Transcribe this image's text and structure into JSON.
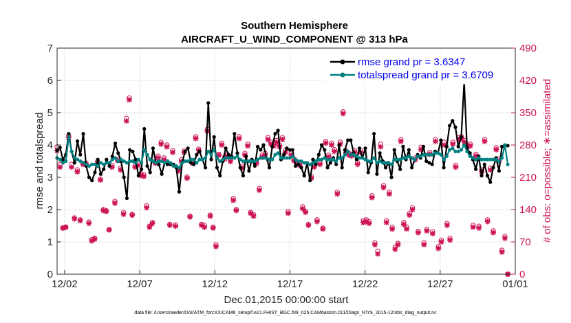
{
  "chart_data": {
    "type": "line",
    "title": "Southern Hemisphere",
    "subtitle": "AIRCRAFT_U_WIND_COMPONENT @ 313 hPa",
    "xlabel": "Dec.01,2015 00:00:00 start",
    "ylabel": "rmse and totalspread",
    "ylabel_right": "# of obs: o=possible; ∗=assimilated",
    "xlim": [
      0.5,
      31.0
    ],
    "ylim": [
      0,
      7
    ],
    "ylim_right": [
      0,
      490
    ],
    "x_ticks": [
      1,
      6,
      11,
      16,
      21,
      26,
      31
    ],
    "x_tick_labels": [
      "12/02",
      "12/07",
      "12/12",
      "12/17",
      "12/22",
      "12/27",
      "01/01"
    ],
    "y_ticks": [
      0,
      1,
      2,
      3,
      4,
      5,
      6,
      7
    ],
    "y_tick_labels": [
      "0",
      "1",
      "2",
      "3",
      "4",
      "5",
      "6",
      "7"
    ],
    "y_ticks_right": [
      0,
      70,
      140,
      210,
      280,
      350,
      420,
      490
    ],
    "y_tick_labels_right": [
      "0",
      "70",
      "140",
      "210",
      "280",
      "350",
      "420",
      "490"
    ],
    "footnote": "data file: /Users/raeder/DAI/ATM_forcXX/CAM6_setup/f.e21.FHIST_BGC.f09_025.CAM6assim.011/Diags_NTrS_2015-12/obs_diag_output.nc",
    "series": [
      {
        "name": "rmse grand pr = 3.6347",
        "color": "#000000",
        "values": [
          3.83,
          3.92,
          3.55,
          3.7,
          4.35,
          3.8,
          3.45,
          4.12,
          3.7,
          4.35,
          3.35,
          3.0,
          2.9,
          3.15,
          3.55,
          3.1,
          3.25,
          3.55,
          3.35,
          3.65,
          4.05,
          3.75,
          3.5,
          3.0,
          2.35,
          3.85,
          3.8,
          3.55,
          3.05,
          3.25,
          4.5,
          3.35,
          3.15,
          3.9,
          3.45,
          3.4,
          3.1,
          3.45,
          3.4,
          3.4,
          3.4,
          3.3,
          2.55,
          3.45,
          3.8,
          3.9,
          3.45,
          3.4,
          3.7,
          3.8,
          3.55,
          3.3,
          5.3,
          3.55,
          4.25,
          3.3,
          3.05,
          3.5,
          3.9,
          3.7,
          3.65,
          4.35,
          3.75,
          3.3,
          3.05,
          3.65,
          3.2,
          3.55,
          3.35,
          3.95,
          3.85,
          4.0,
          3.6,
          3.3,
          3.95,
          4.35,
          4.45,
          3.55,
          3.7,
          3.9,
          3.85,
          3.85,
          3.35,
          3.4,
          3.3,
          3.05,
          3.45,
          2.9,
          3.55,
          3.4,
          3.7,
          4.0,
          3.85,
          3.3,
          3.45,
          3.6,
          3.4,
          4.0,
          3.3,
          3.85,
          4.15,
          4.15,
          3.75,
          3.55,
          3.9,
          3.6,
          3.9,
          3.15,
          3.45,
          4.35,
          3.1,
          3.75,
          3.5,
          3.3,
          3.45,
          3.0,
          3.85,
          3.5,
          3.25,
          3.95,
          3.55,
          3.85,
          3.3,
          3.55,
          3.7,
          3.6,
          3.95,
          3.5,
          3.45,
          3.4,
          3.8,
          3.75,
          4.15,
          3.3,
          3.95,
          4.6,
          4.75,
          4.55,
          3.95,
          4.25,
          5.95,
          3.9,
          3.75,
          3.55,
          3.25,
          3.65,
          3.05,
          3.4,
          3.05,
          2.85,
          3.3,
          3.6,
          3.2,
          3.95,
          4.0,
          3.98
        ],
        "marker": "circle"
      },
      {
        "name": "totalspread grand pr = 3.6709",
        "color": "#008080",
        "values": [
          3.6,
          3.55,
          3.45,
          3.5,
          4.25,
          3.8,
          3.6,
          3.55,
          3.5,
          3.45,
          3.4,
          3.35,
          3.4,
          3.4,
          3.35,
          3.45,
          3.4,
          3.45,
          3.45,
          3.55,
          3.6,
          3.5,
          3.55,
          3.5,
          3.45,
          3.5,
          3.5,
          3.45,
          3.55,
          3.45,
          3.85,
          3.7,
          3.55,
          3.5,
          3.45,
          3.5,
          3.5,
          3.45,
          3.5,
          3.45,
          3.35,
          3.35,
          3.3,
          3.45,
          3.5,
          3.5,
          3.55,
          3.55,
          3.45,
          3.55,
          3.55,
          3.6,
          3.8,
          3.7,
          3.85,
          3.6,
          3.5,
          3.55,
          3.6,
          3.6,
          3.6,
          3.6,
          3.65,
          3.55,
          3.5,
          3.5,
          3.5,
          3.5,
          3.5,
          3.55,
          3.6,
          3.6,
          3.6,
          3.55,
          3.55,
          3.7,
          3.75,
          3.6,
          3.6,
          3.6,
          3.6,
          3.65,
          3.55,
          3.5,
          3.5,
          3.45,
          3.45,
          3.4,
          3.45,
          3.5,
          3.55,
          3.55,
          3.6,
          3.55,
          3.55,
          3.55,
          3.5,
          3.6,
          3.6,
          3.7,
          3.8,
          3.7,
          3.7,
          3.65,
          3.6,
          3.6,
          3.55,
          3.5,
          3.5,
          3.6,
          3.45,
          3.5,
          3.45,
          3.45,
          3.45,
          3.4,
          3.55,
          3.55,
          3.55,
          3.6,
          3.6,
          3.65,
          3.6,
          3.55,
          3.65,
          3.65,
          3.7,
          3.7,
          3.7,
          3.7,
          3.75,
          3.75,
          3.7,
          3.55,
          3.65,
          3.85,
          3.9,
          3.8,
          3.8,
          3.85,
          4.0,
          3.8,
          3.65,
          3.6,
          3.55,
          3.6,
          3.55,
          3.55,
          3.55,
          3.55,
          3.55,
          3.55,
          3.5,
          3.6,
          4.0,
          3.4
        ],
        "marker": "circle"
      }
    ],
    "obs_series": [
      {
        "name": "possible",
        "symbol": "o",
        "color": "#cc1155",
        "values": [
          276,
          238,
          100,
          102,
          300,
          238,
          122,
          226,
          118,
          240,
          241,
          113,
          75,
          78,
          244,
          206,
          140,
          138,
          97,
          236,
          158,
          248,
          230,
          134,
          338,
          382,
          130,
          235,
          240,
          218,
          216,
          148,
          104,
          112,
          244,
          256,
          286,
          252,
          280,
          108,
          268,
          107,
          228,
          248,
          267,
          211,
          126,
          244,
          298,
          271,
          108,
          106,
          314,
          128,
          102,
          64,
          260,
          284,
          254,
          259,
          248,
          164,
          140,
          298,
          234,
          262,
          282,
          134,
          129,
          244,
          186,
          258,
          262,
          296,
          286,
          282,
          290,
          280,
          296,
          268,
          136,
          262,
          250,
          244,
          240,
          146,
          136,
          108,
          212,
          236,
          118,
          241,
          100,
          288,
          258,
          284,
          270,
          178,
          286,
          352,
          268,
          262,
          260,
          268,
          242,
          268,
          116,
          118,
          114,
          170,
          68,
          50,
          282,
          192,
          116,
          178,
          102,
          58,
          67,
          292,
          112,
          102,
          132,
          144,
          252,
          93,
          275,
          68,
          97,
          264,
          92,
          292,
          60,
          74,
          286,
          110,
          78,
          286,
          236,
          296,
          298,
          290,
          280,
          282,
          106,
          260,
          104,
          226,
          292,
          118,
          230,
          94,
          274,
          250,
          52,
          82,
          0
        ]
      },
      {
        "name": "assimilated",
        "symbol": "*",
        "color": "#cc1155",
        "values": [
          268,
          232,
          100,
          102,
          296,
          232,
          120,
          222,
          116,
          238,
          238,
          110,
          72,
          76,
          240,
          204,
          138,
          136,
          96,
          232,
          154,
          246,
          226,
          130,
          332,
          378,
          128,
          232,
          236,
          214,
          212,
          144,
          102,
          110,
          240,
          252,
          282,
          248,
          276,
          106,
          264,
          104,
          224,
          244,
          264,
          208,
          124,
          240,
          294,
          268,
          106,
          102,
          310,
          126,
          100,
          60,
          258,
          280,
          250,
          256,
          244,
          160,
          138,
          294,
          230,
          258,
          278,
          132,
          126,
          240,
          182,
          254,
          258,
          292,
          282,
          278,
          286,
          276,
          292,
          264,
          132,
          258,
          246,
          240,
          236,
          142,
          134,
          106,
          208,
          232,
          114,
          238,
          98,
          284,
          254,
          280,
          266,
          174,
          282,
          348,
          264,
          258,
          256,
          264,
          238,
          264,
          112,
          114,
          110,
          166,
          64,
          44,
          276,
          188,
          112,
          174,
          98,
          54,
          64,
          288,
          108,
          98,
          128,
          140,
          248,
          90,
          270,
          64,
          94,
          260,
          88,
          288,
          56,
          70,
          280,
          106,
          74,
          282,
          232,
          292,
          294,
          286,
          276,
          278,
          102,
          256,
          100,
          222,
          288,
          114,
          226,
          90,
          270,
          246,
          48,
          78,
          0
        ]
      }
    ],
    "legend_position": "top-right"
  }
}
